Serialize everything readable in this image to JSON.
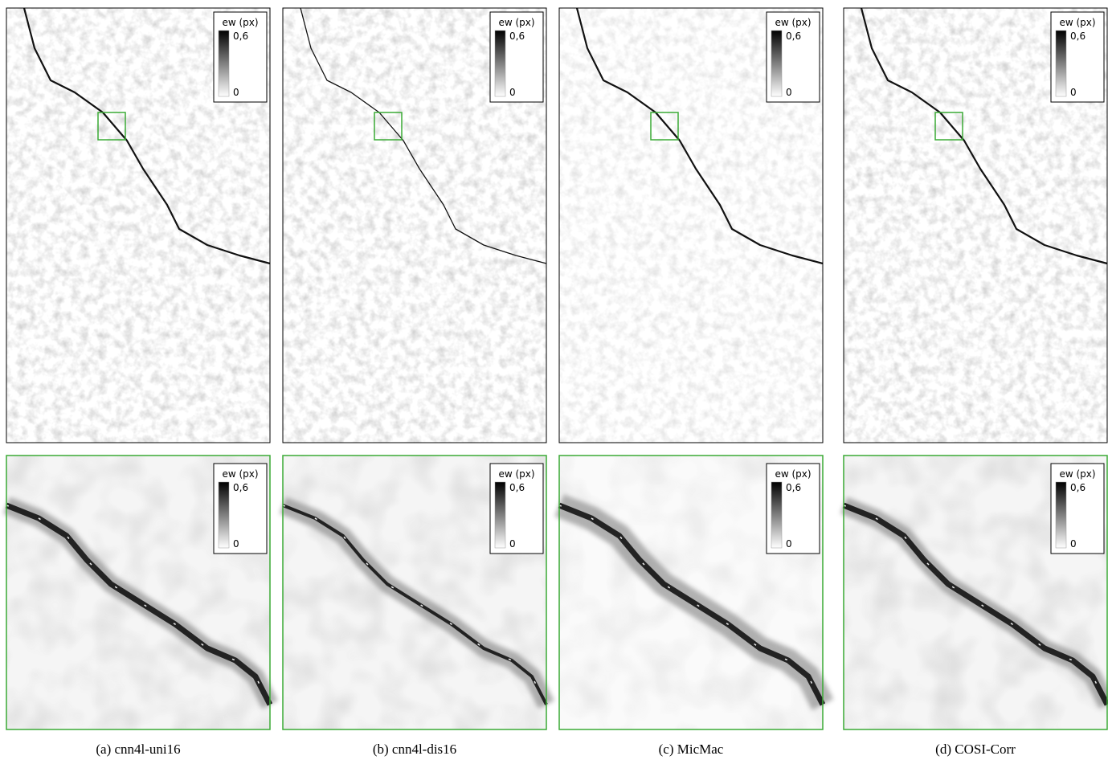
{
  "legend": {
    "title": "ew (px)",
    "max": "0,6",
    "min": "0"
  },
  "panels": [
    {
      "caption": "(a) cnn4l-uni16"
    },
    {
      "caption": "(b) cnn4l-dis16"
    },
    {
      "caption": "(c) MicMac"
    },
    {
      "caption": "(d) COSI-Corr"
    }
  ]
}
